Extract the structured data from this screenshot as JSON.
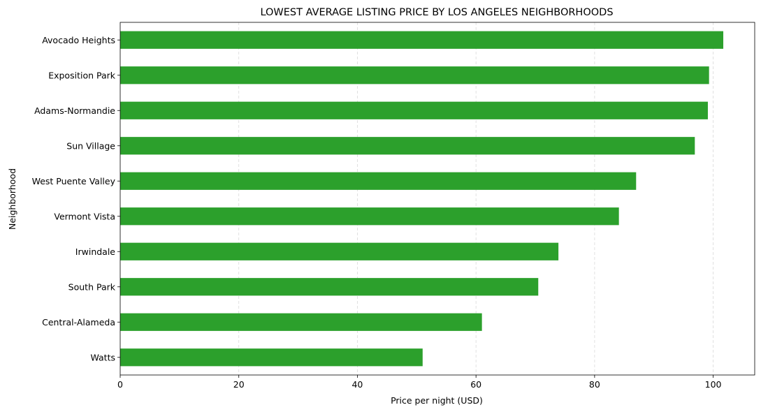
{
  "chart_data": {
    "type": "bar",
    "orientation": "horizontal",
    "title": "LOWEST AVERAGE LISTING PRICE BY LOS ANGELES NEIGHBORHOODS",
    "xlabel": "Price per night (USD)",
    "ylabel": "Neighborhood",
    "categories": [
      "Avocado Heights",
      "Exposition Park",
      "Adams-Normandie",
      "Sun Village",
      "West Puente Valley",
      "Vermont Vista",
      "Irwindale",
      "South Park",
      "Central-Alameda",
      "Watts"
    ],
    "values": [
      101.7,
      99.3,
      99.1,
      96.9,
      87.0,
      84.1,
      73.9,
      70.5,
      61.0,
      51.0
    ],
    "xlim": [
      0,
      107
    ],
    "xticks": [
      0,
      20,
      40,
      60,
      80,
      100
    ],
    "grid": "x-dashed",
    "bar_color": "#2ca02c",
    "grid_color": "#d9d9d9"
  }
}
